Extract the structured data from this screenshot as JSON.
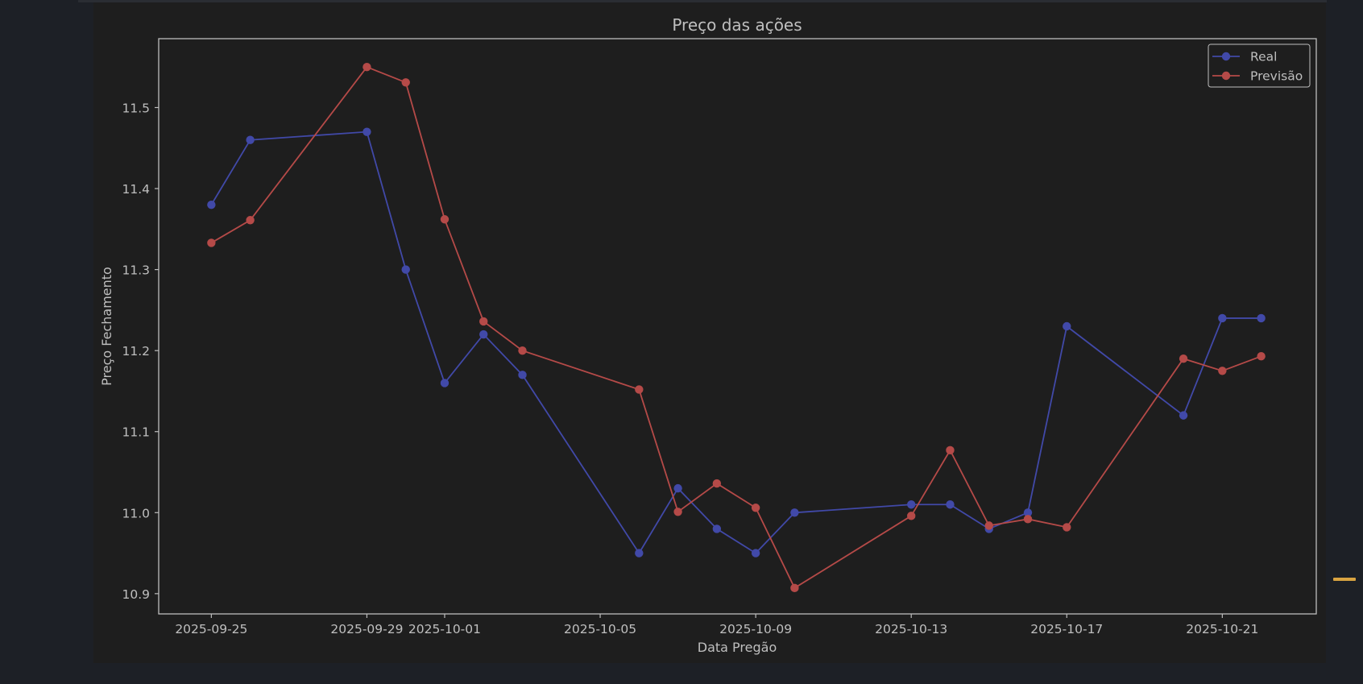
{
  "chart_data": {
    "type": "line",
    "title": "Preço das ações",
    "xlabel": "Data Pregão",
    "ylabel": "Preço Fechamento",
    "ylim": [
      10.875,
      11.585
    ],
    "xlim": [
      "2025-09-23 15:30",
      "2025-10-23 10:00"
    ],
    "yticks": [
      10.9,
      11.0,
      11.1,
      11.2,
      11.3,
      11.4,
      11.5
    ],
    "xticks": [
      "2025-09-25",
      "2025-09-29",
      "2025-10-01",
      "2025-10-05",
      "2025-10-09",
      "2025-10-13",
      "2025-10-17",
      "2025-10-21"
    ],
    "grid": false,
    "legend": "top-right",
    "x": [
      "2025-09-25",
      "2025-09-26",
      "2025-09-29",
      "2025-09-30",
      "2025-10-01",
      "2025-10-02",
      "2025-10-03",
      "2025-10-06",
      "2025-10-07",
      "2025-10-08",
      "2025-10-09",
      "2025-10-10",
      "2025-10-13",
      "2025-10-14",
      "2025-10-15",
      "2025-10-16",
      "2025-10-17",
      "2025-10-20",
      "2025-10-21",
      "2025-10-22"
    ],
    "series": [
      {
        "name": "Real",
        "color": "#4149a8",
        "values": [
          11.38,
          11.46,
          11.47,
          11.3,
          11.16,
          11.22,
          11.17,
          10.95,
          11.03,
          10.98,
          10.95,
          11.0,
          11.01,
          11.01,
          10.98,
          11.0,
          11.23,
          11.12,
          11.24,
          11.24
        ]
      },
      {
        "name": "Previsão",
        "color": "#b54a48",
        "values": [
          11.333,
          11.361,
          11.55,
          11.531,
          11.362,
          11.236,
          11.2,
          11.152,
          11.001,
          11.036,
          11.006,
          10.907,
          10.996,
          11.077,
          10.984,
          10.992,
          10.982,
          11.19,
          11.175,
          11.193
        ]
      }
    ]
  }
}
